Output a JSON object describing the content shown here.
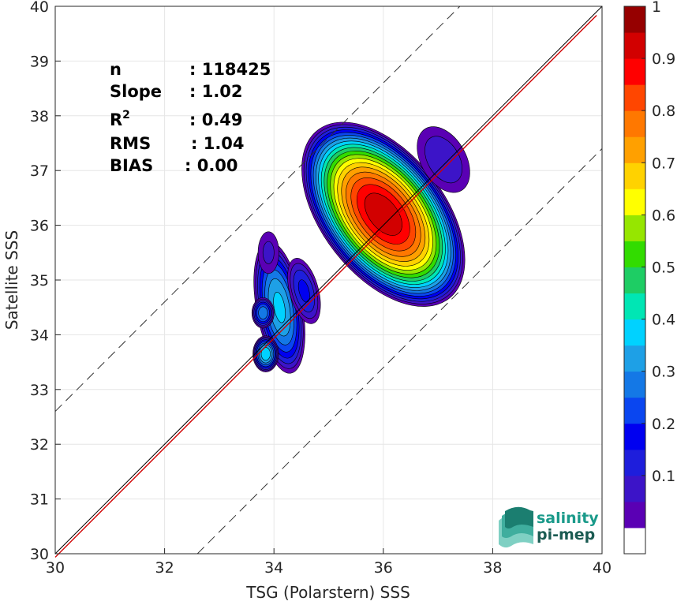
{
  "chart_data": {
    "type": "heatmap",
    "xlabel": "TSG (Polarstern) SSS",
    "ylabel": "Satellite SSS",
    "xlim": [
      30,
      40
    ],
    "ylim": [
      30,
      40
    ],
    "x_ticks": [
      "30",
      "32",
      "34",
      "36",
      "38",
      "40"
    ],
    "y_ticks": [
      "30",
      "31",
      "32",
      "33",
      "34",
      "35",
      "36",
      "37",
      "38",
      "39",
      "40"
    ],
    "grid": true,
    "reference_lines": {
      "one_to_one": {
        "slope": 1,
        "intercept": 0,
        "color": "#000000"
      },
      "regression": {
        "slope": 1.02,
        "color": "#d00000"
      },
      "offset_dashed": [
        {
          "offset": 2.6
        },
        {
          "offset": -2.6
        }
      ]
    },
    "stats": [
      {
        "label": "n",
        "value": ": 118425"
      },
      {
        "label": "Slope",
        "value": ": 1.02"
      },
      {
        "label": "R",
        "sup": "2",
        "value": ": 0.49"
      },
      {
        "label": "RMS",
        "value": ": 1.04"
      },
      {
        "label": "BIAS",
        "value": ": 0.00"
      }
    ],
    "density_blobs": [
      {
        "cx": 36.0,
        "cy": 36.2,
        "rx": 1.15,
        "ry": 2.0,
        "rot": -38,
        "peak": 1.0
      },
      {
        "cx": 34.1,
        "cy": 34.5,
        "rx": 0.45,
        "ry": 1.3,
        "rot": -10,
        "peak": 0.42
      },
      {
        "cx": 33.85,
        "cy": 33.65,
        "rx": 0.25,
        "ry": 0.35,
        "rot": 0,
        "peak": 0.45
      },
      {
        "cx": 33.8,
        "cy": 34.4,
        "rx": 0.22,
        "ry": 0.3,
        "rot": 0,
        "peak": 0.35
      },
      {
        "cx": 34.55,
        "cy": 34.8,
        "rx": 0.3,
        "ry": 0.7,
        "rot": -15,
        "peak": 0.22
      },
      {
        "cx": 37.1,
        "cy": 37.2,
        "rx": 0.5,
        "ry": 0.8,
        "rot": -30,
        "peak": 0.15
      },
      {
        "cx": 33.9,
        "cy": 35.5,
        "rx": 0.25,
        "ry": 0.5,
        "rot": 0,
        "peak": 0.12
      }
    ],
    "colorbar": {
      "ticks": [
        "0.1",
        "0.2",
        "0.3",
        "0.4",
        "0.5",
        "0.6",
        "0.7",
        "0.8",
        "0.9",
        "1"
      ],
      "levels": [
        0.05,
        0.1,
        0.15,
        0.2,
        0.25,
        0.3,
        0.35,
        0.4,
        0.45,
        0.5,
        0.55,
        0.6,
        0.65,
        0.7,
        0.75,
        0.8,
        0.85,
        0.9,
        0.95,
        1.0
      ],
      "colors": [
        "#ffffff",
        "#5a00b4",
        "#3c14c8",
        "#1e1edc",
        "#0000f0",
        "#0a46f0",
        "#1478e6",
        "#1ea0e6",
        "#00d2ff",
        "#00e6b4",
        "#1ecd64",
        "#32dc00",
        "#96e600",
        "#ffff00",
        "#ffd200",
        "#ffa000",
        "#ff7800",
        "#ff4600",
        "#ff0000",
        "#d20000",
        "#960000"
      ]
    }
  },
  "logo": {
    "line1": "salinity",
    "line2": "pi-mep",
    "colors": {
      "teal": "#1a9a8a",
      "dark": "#1b5b52"
    }
  }
}
